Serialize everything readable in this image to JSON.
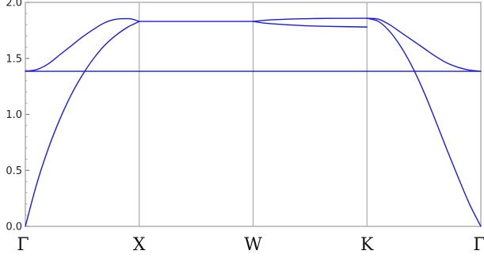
{
  "chart_data": {
    "type": "line",
    "title": "",
    "xlabel": "",
    "ylabel": "",
    "ylim": [
      0.0,
      2.0
    ],
    "yticks": [
      "0.0",
      "0.5",
      "1.0",
      "1.5",
      "2.0"
    ],
    "xlim": [
      0,
      4
    ],
    "high_symmetry_points": [
      {
        "x": 0,
        "label": "Γ"
      },
      {
        "x": 1,
        "label": "X"
      },
      {
        "x": 2,
        "label": "W"
      },
      {
        "x": 3,
        "label": "K"
      },
      {
        "x": 4,
        "label": "Γ"
      }
    ],
    "grid": "vertical lines at high-symmetry points",
    "legend": "none",
    "colors": {
      "band": "#1a1ae6",
      "divider": "#aaaaaa",
      "frame": "#888888"
    },
    "series": [
      {
        "x": [
          0,
          0.1,
          0.2,
          0.3,
          0.4,
          0.5,
          0.6,
          0.7,
          0.8,
          0.9,
          0.94,
          1.0
        ],
        "y": [
          0.0,
          0.38,
          0.69,
          0.95,
          1.17,
          1.35,
          1.5,
          1.62,
          1.71,
          1.78,
          1.8,
          1.83
        ]
      },
      {
        "x": [
          0,
          0.1,
          0.2,
          0.3,
          0.4,
          0.5,
          0.6,
          0.7,
          0.8,
          0.9,
          0.94,
          1.0
        ],
        "y": [
          1.385,
          1.4,
          1.45,
          1.53,
          1.61,
          1.69,
          1.76,
          1.82,
          1.85,
          1.855,
          1.85,
          1.83
        ]
      },
      {
        "x": [
          0,
          1.0
        ],
        "y": [
          1.385,
          1.385
        ]
      },
      {
        "x": [
          1.0,
          2.0
        ],
        "y": [
          1.83,
          1.83
        ]
      },
      {
        "x": [
          1.0,
          2.0
        ],
        "y": [
          1.385,
          1.385
        ]
      },
      {
        "x": [
          2.0,
          2.1,
          2.3,
          2.5,
          2.7,
          3.0
        ],
        "y": [
          1.83,
          1.84,
          1.85,
          1.855,
          1.857,
          1.858
        ]
      },
      {
        "x": [
          2.0,
          2.1,
          2.3,
          2.5,
          2.7,
          3.0
        ],
        "y": [
          1.83,
          1.815,
          1.8,
          1.79,
          1.785,
          1.78
        ]
      },
      {
        "x": [
          2.0,
          3.0
        ],
        "y": [
          1.385,
          1.385
        ]
      },
      {
        "x": [
          3.0,
          3.1,
          3.2,
          3.3,
          3.4,
          3.5,
          3.6,
          3.7,
          3.8,
          3.9,
          4.0
        ],
        "y": [
          1.858,
          1.85,
          1.8,
          1.73,
          1.66,
          1.59,
          1.52,
          1.46,
          1.42,
          1.395,
          1.385
        ]
      },
      {
        "x": [
          3.0,
          3.1,
          3.2,
          3.3,
          3.4,
          3.5,
          3.6,
          3.7,
          3.8,
          3.9,
          4.0
        ],
        "y": [
          1.858,
          1.83,
          1.74,
          1.6,
          1.42,
          1.2,
          0.95,
          0.69,
          0.44,
          0.2,
          0.0
        ]
      },
      {
        "x": [
          3.0,
          4.0
        ],
        "y": [
          1.385,
          1.385
        ]
      }
    ]
  }
}
